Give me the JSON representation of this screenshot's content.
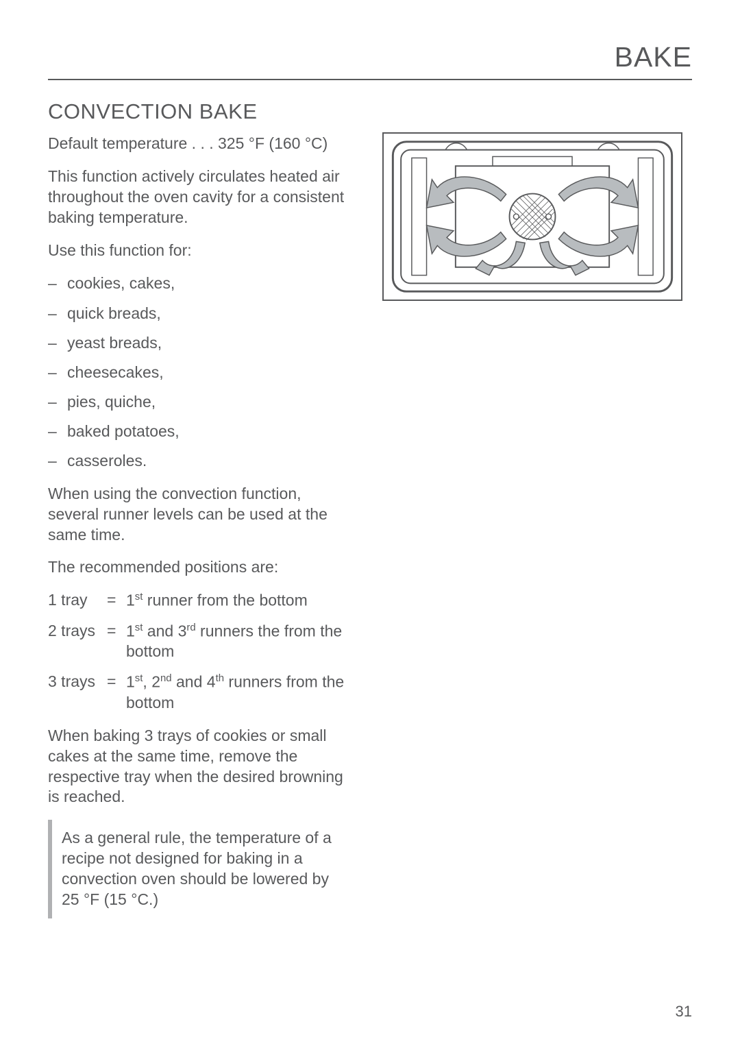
{
  "header": {
    "title": "BAKE"
  },
  "section": {
    "title": "CONVECTION BAKE",
    "default_temp": "Default temperature . . . 325 °F (160 °C)",
    "description": "This function actively circulates heated air throughout the oven cavity for a consistent baking temperature.",
    "uses_intro": "Use this function for:",
    "uses": [
      "cookies, cakes,",
      "quick breads,",
      "yeast breads,",
      "cheesecakes,",
      "pies, quiche,",
      "baked potatoes,",
      "casseroles."
    ],
    "runner_intro": "When using the convection function, several runner levels can be used at the same time.",
    "positions_intro": "The recommended positions are:",
    "tray_rows": [
      {
        "label": "1 tray",
        "eq": "=",
        "desc_html": "1<sup>st</sup> runner from the bottom"
      },
      {
        "label": "2 trays",
        "eq": "=",
        "desc_html": "1<sup>st</sup> and 3<sup>rd</sup> runners the from the bottom"
      },
      {
        "label": "3 trays",
        "eq": "=",
        "desc_html": "1<sup>st</sup>, 2<sup>nd</sup> and 4<sup>th</sup> runners from the bottom"
      }
    ],
    "browning_note": "When baking 3 trays of cookies or small cakes at the same time, remove the respective tray when the desired browning is reached.",
    "boxed_note": "As a general rule, the temperature of a recipe not designed for baking in a convection oven should be lowered by 25 °F (15 °C.)"
  },
  "page_number": "31",
  "diagram": {
    "stroke": "#58595b",
    "arrow_fill": "#b8bcbf",
    "bg": "#ffffff"
  }
}
